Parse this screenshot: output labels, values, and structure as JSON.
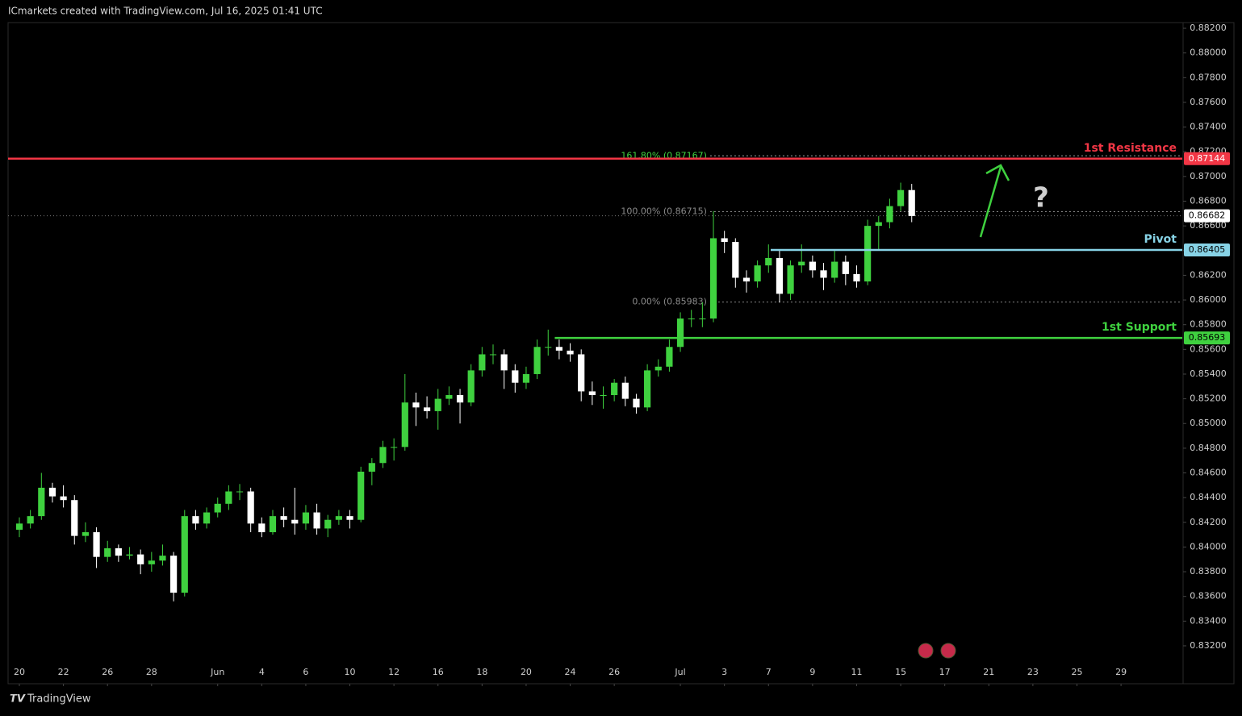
{
  "chart_data": {
    "type": "candlestick",
    "header": "ICmarkets created with TradingView.com, Jul 16, 2025 01:41 UTC",
    "footer": "TradingView",
    "up_color": "#3fd13f",
    "down_color": "#ffffff",
    "x": [
      0,
      0.5,
      1,
      1.5,
      2,
      2.5,
      3,
      3.5,
      4,
      4.5,
      5,
      5.5,
      6,
      6.5,
      7,
      7.5,
      8,
      8.5,
      9,
      9.5,
      10,
      10.5,
      11,
      11.5,
      12,
      12.5,
      13,
      13.5,
      14,
      14.5,
      15,
      15.5,
      16,
      16.5,
      17,
      17.5,
      18,
      18.5,
      19,
      19.5,
      20,
      20.5,
      21,
      21.5,
      22,
      22.5,
      23,
      23.5,
      24,
      24.5,
      25,
      25.5,
      26,
      26.5,
      27,
      27.5,
      28,
      28.5,
      29,
      29.5,
      30,
      30.5,
      31,
      31.5,
      32,
      32.5,
      33,
      33.5,
      34,
      34.5,
      35,
      35.5,
      36,
      36.5,
      37,
      37.5,
      38,
      38.5,
      39,
      39.5,
      40,
      40.5
    ],
    "ohlc": [
      [
        0.8414,
        0.8424,
        0.8408,
        0.8419
      ],
      [
        0.8419,
        0.843,
        0.8415,
        0.8425
      ],
      [
        0.8425,
        0.846,
        0.8422,
        0.8448
      ],
      [
        0.8448,
        0.8452,
        0.8436,
        0.8441
      ],
      [
        0.8441,
        0.845,
        0.8432,
        0.8438
      ],
      [
        0.8438,
        0.8442,
        0.8402,
        0.8409
      ],
      [
        0.8409,
        0.842,
        0.8404,
        0.8412
      ],
      [
        0.8412,
        0.8416,
        0.8383,
        0.8392
      ],
      [
        0.8392,
        0.8405,
        0.8388,
        0.8399
      ],
      [
        0.8399,
        0.8402,
        0.8388,
        0.8393
      ],
      [
        0.8393,
        0.84,
        0.839,
        0.8394
      ],
      [
        0.8394,
        0.8398,
        0.8378,
        0.8386
      ],
      [
        0.8386,
        0.8396,
        0.838,
        0.8389
      ],
      [
        0.8389,
        0.8402,
        0.8385,
        0.8393
      ],
      [
        0.8393,
        0.8396,
        0.8356,
        0.8363
      ],
      [
        0.8363,
        0.843,
        0.836,
        0.8425
      ],
      [
        0.8425,
        0.843,
        0.8414,
        0.8419
      ],
      [
        0.8419,
        0.8432,
        0.8415,
        0.8428
      ],
      [
        0.8428,
        0.844,
        0.8424,
        0.8435
      ],
      [
        0.8435,
        0.845,
        0.843,
        0.8445
      ],
      [
        0.8445,
        0.8451,
        0.8438,
        0.8445
      ],
      [
        0.8445,
        0.8448,
        0.8412,
        0.8419
      ],
      [
        0.8419,
        0.8424,
        0.8408,
        0.8412
      ],
      [
        0.8412,
        0.843,
        0.841,
        0.8425
      ],
      [
        0.8425,
        0.8432,
        0.8416,
        0.8422
      ],
      [
        0.8422,
        0.8448,
        0.841,
        0.8419
      ],
      [
        0.8419,
        0.8434,
        0.8414,
        0.8428
      ],
      [
        0.8428,
        0.8435,
        0.841,
        0.8415
      ],
      [
        0.8415,
        0.8426,
        0.8408,
        0.8422
      ],
      [
        0.8422,
        0.843,
        0.8418,
        0.8425
      ],
      [
        0.8425,
        0.843,
        0.8415,
        0.8422
      ],
      [
        0.8422,
        0.8465,
        0.842,
        0.8461
      ],
      [
        0.8461,
        0.8472,
        0.845,
        0.8468
      ],
      [
        0.8468,
        0.8486,
        0.8464,
        0.8481
      ],
      [
        0.8481,
        0.8488,
        0.847,
        0.8481
      ],
      [
        0.8481,
        0.854,
        0.8478,
        0.8517
      ],
      [
        0.8517,
        0.8525,
        0.8498,
        0.8513
      ],
      [
        0.8513,
        0.8522,
        0.8504,
        0.851
      ],
      [
        0.851,
        0.8528,
        0.8495,
        0.852
      ],
      [
        0.852,
        0.853,
        0.8515,
        0.8523
      ],
      [
        0.8523,
        0.8528,
        0.85,
        0.8517
      ],
      [
        0.8517,
        0.8548,
        0.8514,
        0.8543
      ],
      [
        0.8543,
        0.8562,
        0.8538,
        0.8556
      ],
      [
        0.8556,
        0.8564,
        0.8548,
        0.8556
      ],
      [
        0.8556,
        0.856,
        0.8528,
        0.8543
      ],
      [
        0.8543,
        0.8548,
        0.8525,
        0.8533
      ],
      [
        0.8533,
        0.8546,
        0.8528,
        0.854
      ],
      [
        0.854,
        0.8568,
        0.8536,
        0.8562
      ],
      [
        0.8562,
        0.8576,
        0.8555,
        0.8562
      ],
      [
        0.8562,
        0.8568,
        0.8552,
        0.8559
      ],
      [
        0.8559,
        0.8565,
        0.855,
        0.8556
      ],
      [
        0.8556,
        0.856,
        0.8518,
        0.8526
      ],
      [
        0.8526,
        0.8534,
        0.8515,
        0.8523
      ],
      [
        0.8523,
        0.853,
        0.8512,
        0.8523
      ],
      [
        0.8523,
        0.8536,
        0.8518,
        0.8533
      ],
      [
        0.8533,
        0.8538,
        0.8514,
        0.852
      ],
      [
        0.852,
        0.8524,
        0.8508,
        0.8513
      ],
      [
        0.8513,
        0.8548,
        0.851,
        0.8543
      ],
      [
        0.8543,
        0.8552,
        0.8538,
        0.8546
      ],
      [
        0.8546,
        0.8568,
        0.8542,
        0.8562
      ],
      [
        0.8562,
        0.859,
        0.8558,
        0.8585
      ],
      [
        0.8585,
        0.8592,
        0.8578,
        0.8585
      ],
      [
        0.8585,
        0.8598,
        0.8578,
        0.8585
      ],
      [
        0.8585,
        0.8672,
        0.8582,
        0.865
      ],
      [
        0.865,
        0.8656,
        0.8638,
        0.8647
      ],
      [
        0.8647,
        0.865,
        0.861,
        0.8618
      ],
      [
        0.8618,
        0.8624,
        0.8606,
        0.8615
      ],
      [
        0.8615,
        0.8632,
        0.861,
        0.8628
      ],
      [
        0.8628,
        0.8645,
        0.8622,
        0.8634
      ],
      [
        0.8634,
        0.864,
        0.8598,
        0.8605
      ],
      [
        0.8605,
        0.8632,
        0.86,
        0.8628
      ],
      [
        0.8628,
        0.8645,
        0.8622,
        0.8631
      ],
      [
        0.8631,
        0.8636,
        0.8618,
        0.8624
      ],
      [
        0.8624,
        0.863,
        0.8608,
        0.8618
      ],
      [
        0.8618,
        0.864,
        0.8614,
        0.8631
      ],
      [
        0.8631,
        0.8636,
        0.8612,
        0.8621
      ],
      [
        0.8621,
        0.8628,
        0.861,
        0.8615
      ],
      [
        0.8615,
        0.8665,
        0.8612,
        0.866
      ],
      [
        0.866,
        0.8668,
        0.864,
        0.8663
      ],
      [
        0.8663,
        0.8682,
        0.8658,
        0.8676
      ],
      [
        0.8676,
        0.8695,
        0.8672,
        0.8689
      ],
      [
        0.8689,
        0.8694,
        0.8663,
        0.8668
      ]
    ],
    "xlim": [
      -0.513,
      52.78
    ],
    "xticks": [
      {
        "value": 0,
        "label": "20"
      },
      {
        "value": 2,
        "label": "22"
      },
      {
        "value": 4,
        "label": "26"
      },
      {
        "value": 6,
        "label": "28"
      },
      {
        "value": 9,
        "label": "Jun"
      },
      {
        "value": 11,
        "label": "4"
      },
      {
        "value": 13,
        "label": "6"
      },
      {
        "value": 15,
        "label": "10"
      },
      {
        "value": 17,
        "label": "12"
      },
      {
        "value": 19,
        "label": "16"
      },
      {
        "value": 21,
        "label": "18"
      },
      {
        "value": 23,
        "label": "20"
      },
      {
        "value": 25,
        "label": "24"
      },
      {
        "value": 27,
        "label": "26"
      },
      {
        "value": 30,
        "label": "Jul"
      },
      {
        "value": 32,
        "label": "3"
      },
      {
        "value": 34,
        "label": "7"
      },
      {
        "value": 36,
        "label": "9"
      },
      {
        "value": 38,
        "label": "11"
      },
      {
        "value": 40,
        "label": "15"
      },
      {
        "value": 42,
        "label": "17"
      },
      {
        "value": 44,
        "label": "21"
      },
      {
        "value": 46,
        "label": "23"
      },
      {
        "value": 48,
        "label": "25"
      },
      {
        "value": 50,
        "label": "29"
      }
    ],
    "ylim": [
      0.82893,
      0.88246
    ],
    "yticks": [
      {
        "value": 0.882,
        "label": "0.88200"
      },
      {
        "value": 0.88,
        "label": "0.88000"
      },
      {
        "value": 0.878,
        "label": "0.87800"
      },
      {
        "value": 0.876,
        "label": "0.87600"
      },
      {
        "value": 0.874,
        "label": "0.87400"
      },
      {
        "value": 0.872,
        "label": "0.87200"
      },
      {
        "value": 0.87,
        "label": "0.87000"
      },
      {
        "value": 0.868,
        "label": "0.86800"
      },
      {
        "value": 0.866,
        "label": "0.86600"
      },
      {
        "value": 0.864,
        "label": "0.86400"
      },
      {
        "value": 0.862,
        "label": "0.86200"
      },
      {
        "value": 0.86,
        "label": "0.86000"
      },
      {
        "value": 0.858,
        "label": "0.85800"
      },
      {
        "value": 0.856,
        "label": "0.85600"
      },
      {
        "value": 0.854,
        "label": "0.85400"
      },
      {
        "value": 0.852,
        "label": "0.85200"
      },
      {
        "value": 0.85,
        "label": "0.85000"
      },
      {
        "value": 0.848,
        "label": "0.84800"
      },
      {
        "value": 0.846,
        "label": "0.84600"
      },
      {
        "value": 0.844,
        "label": "0.84400"
      },
      {
        "value": 0.842,
        "label": "0.84200"
      },
      {
        "value": 0.84,
        "label": "0.84000"
      },
      {
        "value": 0.838,
        "label": "0.83800"
      },
      {
        "value": 0.836,
        "label": "0.83600"
      },
      {
        "value": 0.834,
        "label": "0.83400"
      },
      {
        "value": 0.832,
        "label": "0.83200"
      }
    ],
    "grid": false,
    "fib": [
      {
        "value": 0.87167,
        "label": "161.80% (0.87167)",
        "color": "#3fd13f",
        "start_x": 31.35
      },
      {
        "value": 0.86715,
        "label": "100.00% (0.86715)",
        "color": "#8a8a8a",
        "start_x": 31.35
      },
      {
        "value": 0.85983,
        "label": "0.00% (0.85983)",
        "color": "#8a8a8a",
        "start_x": 31.35
      }
    ],
    "levels": [
      {
        "name": "1st Resistance",
        "value": 0.87144,
        "color": "#f23645",
        "start_x": -0.513
      },
      {
        "name": "Pivot",
        "value": 0.86405,
        "color": "#87d3e6",
        "start_x": 34.1
      },
      {
        "name": "1st Support",
        "value": 0.85693,
        "color": "#3fd13f",
        "start_x": 24.3
      }
    ],
    "last_price": 0.86682,
    "annotation": "?"
  }
}
